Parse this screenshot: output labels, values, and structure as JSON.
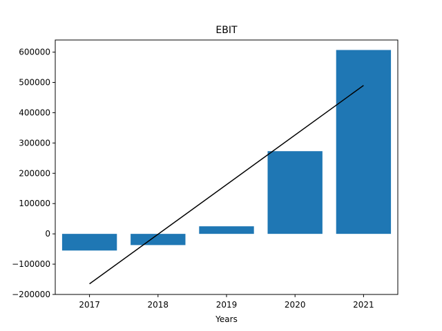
{
  "chart_data": {
    "type": "bar",
    "title": "EBIT",
    "xlabel": "Years",
    "ylabel": "",
    "categories": [
      "2017",
      "2018",
      "2019",
      "2020",
      "2021"
    ],
    "series": [
      {
        "values": [
          -55000,
          -37000,
          25000,
          273000,
          607000
        ],
        "color": "#1f77b4"
      }
    ],
    "trendline": {
      "start": [
        2017,
        -165000
      ],
      "end": [
        2021,
        490000
      ],
      "color": "#000000"
    },
    "ylim": [
      -200000,
      640000
    ],
    "yticks": [
      -200000,
      -100000,
      0,
      100000,
      200000,
      300000,
      400000,
      500000,
      600000
    ],
    "grid": false,
    "legend": "none"
  }
}
